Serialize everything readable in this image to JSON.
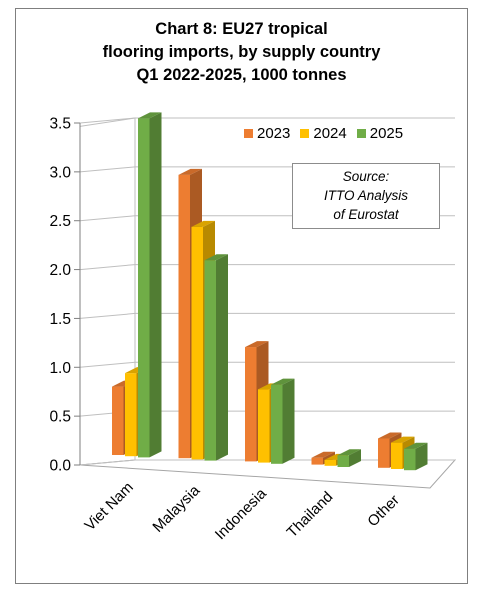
{
  "chart_data": {
    "type": "bar",
    "title_lines": [
      "Chart 8: EU27 tropical",
      "flooring imports, by supply country",
      "Q1 2022-2025, 1000 tonnes"
    ],
    "categories": [
      "Viet Nam",
      "Malaysia",
      "Indonesia",
      "Thailand",
      "Other"
    ],
    "series": [
      {
        "name": "2023",
        "color": "#ed7d31",
        "values": [
          0.7,
          2.9,
          1.17,
          0.07,
          0.3
        ]
      },
      {
        "name": "2024",
        "color": "#ffc000",
        "values": [
          0.85,
          2.38,
          0.75,
          0.06,
          0.27
        ]
      },
      {
        "name": "2025",
        "color": "#70ad47",
        "values": [
          3.47,
          2.05,
          0.81,
          0.12,
          0.22
        ]
      }
    ],
    "y_ticks": [
      "0.0",
      "0.5",
      "1.0",
      "1.5",
      "2.0",
      "2.5",
      "3.0",
      "3.5"
    ],
    "ylim": [
      0,
      3.5
    ],
    "source_lines": [
      "Source:",
      "ITTO Analysis",
      "of Eurostat"
    ],
    "legend_position": "top-right",
    "grid": true
  }
}
